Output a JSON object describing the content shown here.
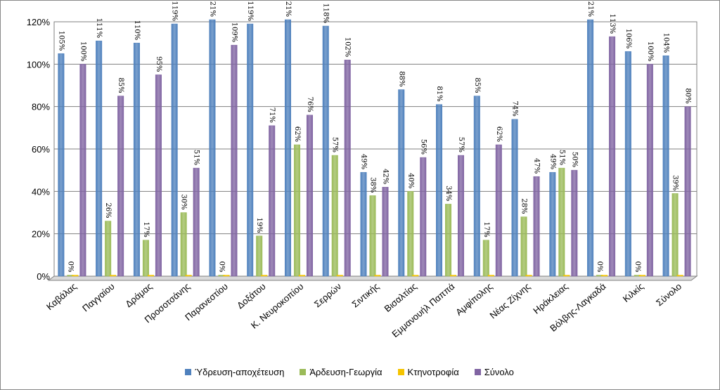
{
  "chart_data": {
    "type": "bar",
    "title": "",
    "xlabel": "",
    "ylabel": "",
    "ylim": [
      0,
      1.2
    ],
    "yticks": [
      "0%",
      "20%",
      "40%",
      "60%",
      "80%",
      "100%",
      "120%"
    ],
    "grid": true,
    "legend_position": "bottom",
    "categories": [
      "Καβάλας",
      "Παγγαίου",
      "Δράμας",
      "Προσοτσάνης",
      "Παρανεστίου",
      "Δοξάτου",
      "Κ. Νευροκοπίου",
      "Σερρών",
      "Σιντικής",
      "Βισαλτίας",
      "Εμμανουήλ Παππά",
      "Αμφίπολης",
      "Νέας Ζίχνης",
      "Ηράκλειας",
      "Βόλβης-Λαγκαδά",
      "Κιλκίς",
      "Σύνολο"
    ],
    "series": [
      {
        "name": "Ύδρευση-αποχέτευση",
        "color": "#4F81BD",
        "values": [
          1.05,
          1.11,
          1.1,
          1.19,
          1.21,
          1.19,
          1.21,
          1.18,
          0.49,
          0.88,
          0.81,
          0.85,
          0.74,
          0.49,
          1.21,
          1.06,
          1.04
        ],
        "labels": [
          "105%",
          "111%",
          "110%",
          "119%",
          "121%",
          "119%",
          "121%",
          "118%",
          "49%",
          "88%",
          "81%",
          "85%",
          "74%",
          "49%",
          "121%",
          "106%",
          "104%"
        ]
      },
      {
        "name": "Άρδευση-Γεωργία",
        "color": "#9BBB59",
        "values": [
          0.0,
          0.26,
          0.17,
          0.3,
          0.0,
          0.19,
          0.62,
          0.57,
          0.38,
          0.4,
          0.34,
          0.17,
          0.28,
          0.51,
          0.0,
          0.0,
          0.39
        ],
        "labels": [
          "0%",
          "26%",
          "17%",
          "30%",
          "0%",
          "19%",
          "62%",
          "57%",
          "38%",
          "40%",
          "34%",
          "17%",
          "28%",
          "51%",
          "0%",
          "0%",
          "39%"
        ]
      },
      {
        "name": "Κτηνοτροφία",
        "color": "#F5C400",
        "values": [
          0.0,
          0.0,
          0.0,
          0.0,
          0.0,
          0.0,
          0.0,
          0.0,
          0.0,
          0.0,
          0.0,
          0.0,
          0.0,
          0.0,
          0.0,
          0.0,
          0.0
        ],
        "labels": []
      },
      {
        "name": "Σύνολο",
        "color": "#8064A2",
        "values": [
          1.0,
          0.85,
          0.95,
          0.51,
          1.09,
          0.71,
          0.76,
          1.02,
          0.42,
          0.56,
          0.57,
          0.62,
          0.47,
          0.5,
          1.13,
          1.0,
          0.8
        ],
        "labels": [
          "100%",
          "85%",
          "95%",
          "51%",
          "109%",
          "71%",
          "76%",
          "102%",
          "42%",
          "56%",
          "57%",
          "62%",
          "47%",
          "50%",
          "113%",
          "100%",
          "80%"
        ]
      }
    ]
  }
}
